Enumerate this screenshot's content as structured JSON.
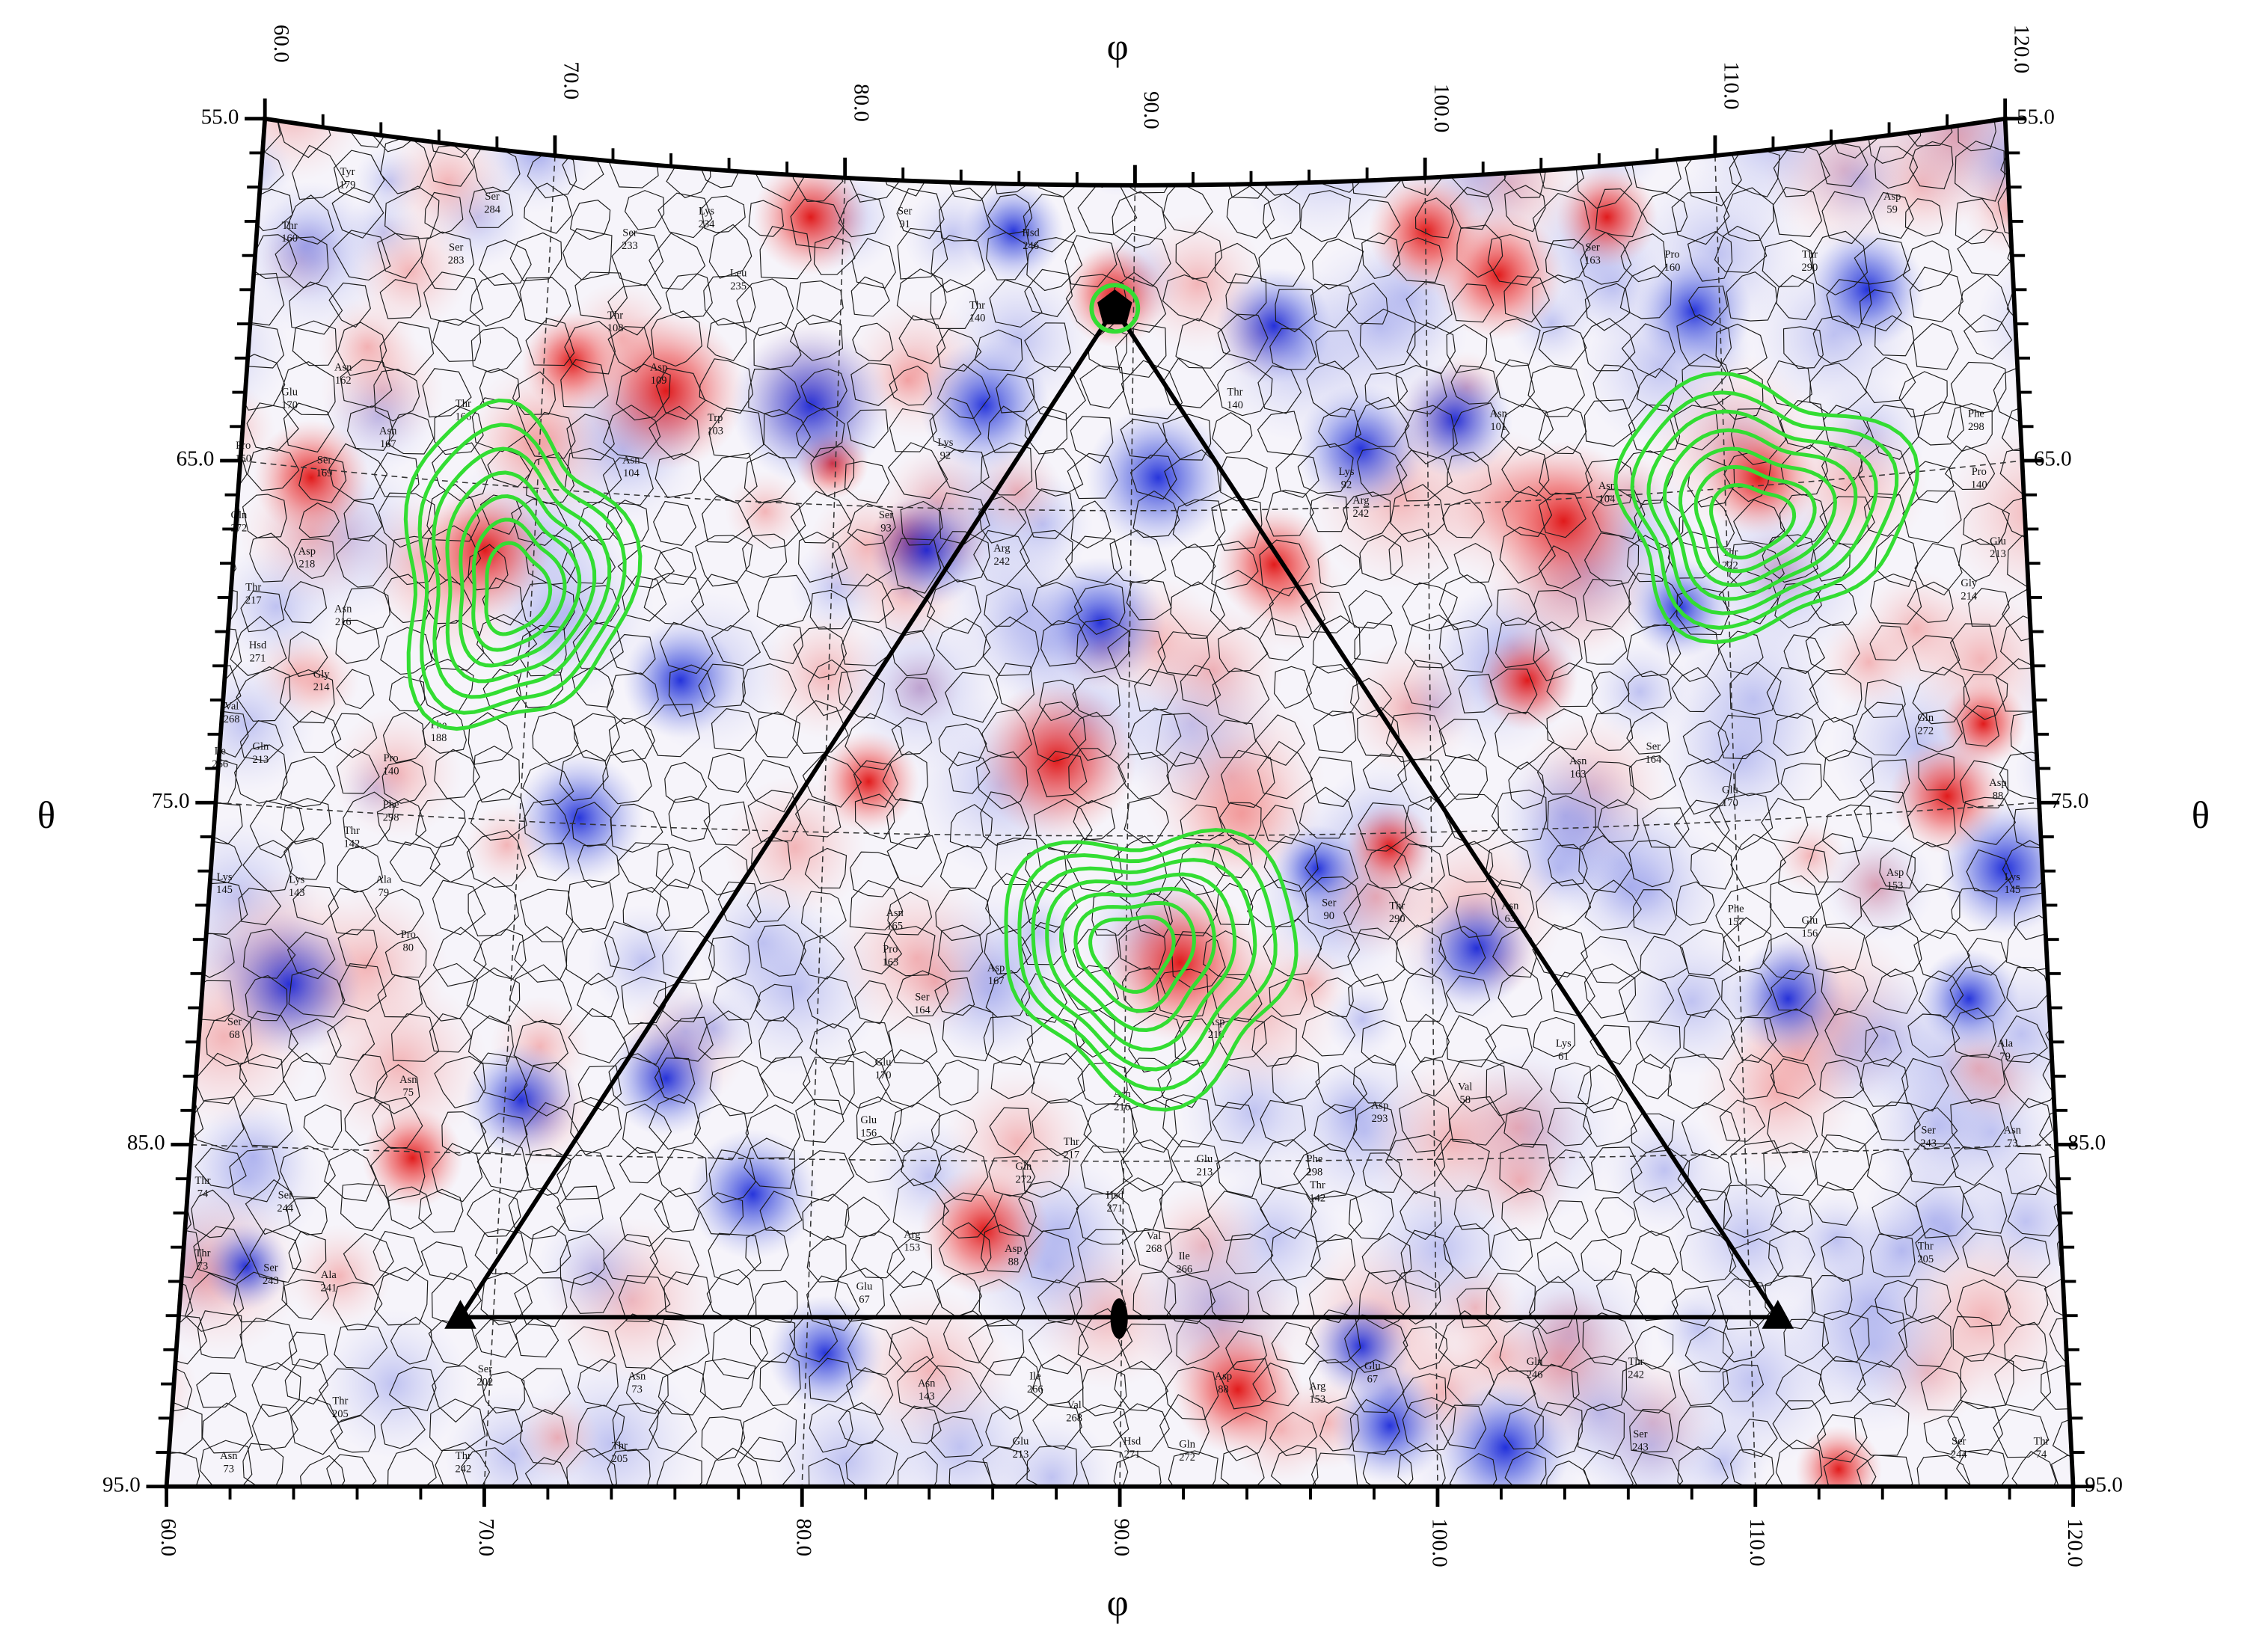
{
  "map": {
    "phi_label": "φ",
    "theta_label": "θ",
    "phi_range": [
      60,
      120
    ],
    "theta_range": [
      55,
      95
    ],
    "phi_ticks": [
      {
        "value": 60,
        "label": "60.0"
      },
      {
        "value": 70,
        "label": "70.0"
      },
      {
        "value": 80,
        "label": "80.0"
      },
      {
        "value": 90,
        "label": "90.0"
      },
      {
        "value": 100,
        "label": "100.0"
      },
      {
        "value": 110,
        "label": "110.0"
      },
      {
        "value": 120,
        "label": "120.0"
      }
    ],
    "theta_ticks": [
      {
        "value": 55,
        "label": "55.0"
      },
      {
        "value": 65,
        "label": "65.0"
      },
      {
        "value": 75,
        "label": "75.0"
      },
      {
        "value": 85,
        "label": "85.0"
      },
      {
        "value": 95,
        "label": "95.0"
      }
    ],
    "residues": [
      {
        "name": "Tyr",
        "number": "179"
      },
      {
        "name": "Thr",
        "number": "160"
      },
      {
        "name": "Ser",
        "number": "283"
      },
      {
        "name": "Asn",
        "number": "162"
      },
      {
        "name": "Glu",
        "number": "170"
      },
      {
        "name": "Asn",
        "number": "167"
      },
      {
        "name": "Thr",
        "number": "166"
      },
      {
        "name": "Pro",
        "number": "150"
      },
      {
        "name": "Ser",
        "number": "169"
      },
      {
        "name": "Gln",
        "number": "272"
      },
      {
        "name": "Asp",
        "number": "218"
      },
      {
        "name": "Thr",
        "number": "217"
      },
      {
        "name": "Asn",
        "number": "216"
      },
      {
        "name": "Hsd",
        "number": "271"
      },
      {
        "name": "Gly",
        "number": "214"
      },
      {
        "name": "Val",
        "number": "268"
      },
      {
        "name": "Ile",
        "number": "266"
      },
      {
        "name": "Gln",
        "number": "213"
      },
      {
        "name": "Pro",
        "number": "140"
      },
      {
        "name": "Phe",
        "number": "188"
      },
      {
        "name": "Ser",
        "number": "284"
      },
      {
        "name": "Ser",
        "number": "233"
      },
      {
        "name": "Thr",
        "number": "108"
      },
      {
        "name": "Asp",
        "number": "109"
      },
      {
        "name": "Trp",
        "number": "103"
      },
      {
        "name": "Asn",
        "number": "104"
      },
      {
        "name": "Ser",
        "number": "91"
      },
      {
        "name": "Lys",
        "number": "234"
      },
      {
        "name": "Leu",
        "number": "235"
      },
      {
        "name": "Hsd",
        "number": "246"
      },
      {
        "name": "Thr",
        "number": "140"
      },
      {
        "name": "Lys",
        "number": "92"
      },
      {
        "name": "Ser",
        "number": "93"
      },
      {
        "name": "Arg",
        "number": "242"
      },
      {
        "name": "Thr",
        "number": "140"
      },
      {
        "name": "Asn",
        "number": "101"
      },
      {
        "name": "Lys",
        "number": "92"
      },
      {
        "name": "Arg",
        "number": "242"
      },
      {
        "name": "Asn",
        "number": "104"
      },
      {
        "name": "Thr",
        "number": "222"
      },
      {
        "name": "Ser",
        "number": "163"
      },
      {
        "name": "Pro",
        "number": "160"
      },
      {
        "name": "Thr",
        "number": "290"
      },
      {
        "name": "Asp",
        "number": "59"
      },
      {
        "name": "Phe",
        "number": "298"
      },
      {
        "name": "Pro",
        "number": "140"
      },
      {
        "name": "Glu",
        "number": "213"
      },
      {
        "name": "Gly",
        "number": "214"
      },
      {
        "name": "Asn",
        "number": "163"
      },
      {
        "name": "Ser",
        "number": "164"
      },
      {
        "name": "Glu",
        "number": "170"
      },
      {
        "name": "Gln",
        "number": "272"
      },
      {
        "name": "Asp",
        "number": "88"
      },
      {
        "name": "Lys",
        "number": "145"
      },
      {
        "name": "Asp",
        "number": "153"
      },
      {
        "name": "Phe",
        "number": "157"
      },
      {
        "name": "Glu",
        "number": "156"
      },
      {
        "name": "Ala",
        "number": "79"
      },
      {
        "name": "Ser",
        "number": "243"
      },
      {
        "name": "Asn",
        "number": "73"
      },
      {
        "name": "Thr",
        "number": "205"
      },
      {
        "name": "Ser",
        "number": "244"
      },
      {
        "name": "Thr",
        "number": "74"
      },
      {
        "name": "Thr",
        "number": "74"
      },
      {
        "name": "Ser",
        "number": "244"
      },
      {
        "name": "Ser",
        "number": "243"
      },
      {
        "name": "Thr",
        "number": "73"
      },
      {
        "name": "Ala",
        "number": "241"
      },
      {
        "name": "Thr",
        "number": "205"
      },
      {
        "name": "Asn",
        "number": "73"
      },
      {
        "name": "Ser",
        "number": "202"
      },
      {
        "name": "Thr",
        "number": "242"
      },
      {
        "name": "Asn",
        "number": "75"
      },
      {
        "name": "Ser",
        "number": "68"
      },
      {
        "name": "Lys",
        "number": "145"
      },
      {
        "name": "Lys",
        "number": "143"
      },
      {
        "name": "Thr",
        "number": "142"
      },
      {
        "name": "Phe",
        "number": "298"
      },
      {
        "name": "Pro",
        "number": "80"
      },
      {
        "name": "Ala",
        "number": "79"
      },
      {
        "name": "Asn",
        "number": "165"
      },
      {
        "name": "Pro",
        "number": "163"
      },
      {
        "name": "Asp",
        "number": "167"
      },
      {
        "name": "Ser",
        "number": "164"
      },
      {
        "name": "Glu",
        "number": "170"
      },
      {
        "name": "Glu",
        "number": "156"
      },
      {
        "name": "Asn",
        "number": "216"
      },
      {
        "name": "Asp",
        "number": "218"
      },
      {
        "name": "Thr",
        "number": "217"
      },
      {
        "name": "Glu",
        "number": "213"
      },
      {
        "name": "Gln",
        "number": "272"
      },
      {
        "name": "Hsd",
        "number": "271"
      },
      {
        "name": "Val",
        "number": "268"
      },
      {
        "name": "Ile",
        "number": "266"
      },
      {
        "name": "Asp",
        "number": "88"
      },
      {
        "name": "Arg",
        "number": "153"
      },
      {
        "name": "Glu",
        "number": "67"
      },
      {
        "name": "Ser",
        "number": "90"
      },
      {
        "name": "Thr",
        "number": "290"
      },
      {
        "name": "Asn",
        "number": "63"
      },
      {
        "name": "Asp",
        "number": "293"
      },
      {
        "name": "Val",
        "number": "58"
      },
      {
        "name": "Phe",
        "number": "298"
      },
      {
        "name": "Lys",
        "number": "61"
      },
      {
        "name": "Thr",
        "number": "142"
      },
      {
        "name": "Asp",
        "number": "88"
      },
      {
        "name": "Arg",
        "number": "153"
      },
      {
        "name": "Glu",
        "number": "67"
      },
      {
        "name": "Gln",
        "number": "246"
      },
      {
        "name": "Ser",
        "number": "243"
      },
      {
        "name": "Thr",
        "number": "242"
      },
      {
        "name": "Asn",
        "number": "143"
      },
      {
        "name": "Ile",
        "number": "266"
      },
      {
        "name": "Val",
        "number": "268"
      },
      {
        "name": "Gln",
        "number": "272"
      },
      {
        "name": "Hsd",
        "number": "271"
      },
      {
        "name": "Glu",
        "number": "213"
      },
      {
        "name": "Asn",
        "number": "73"
      },
      {
        "name": "Thr",
        "number": "205"
      }
    ]
  }
}
